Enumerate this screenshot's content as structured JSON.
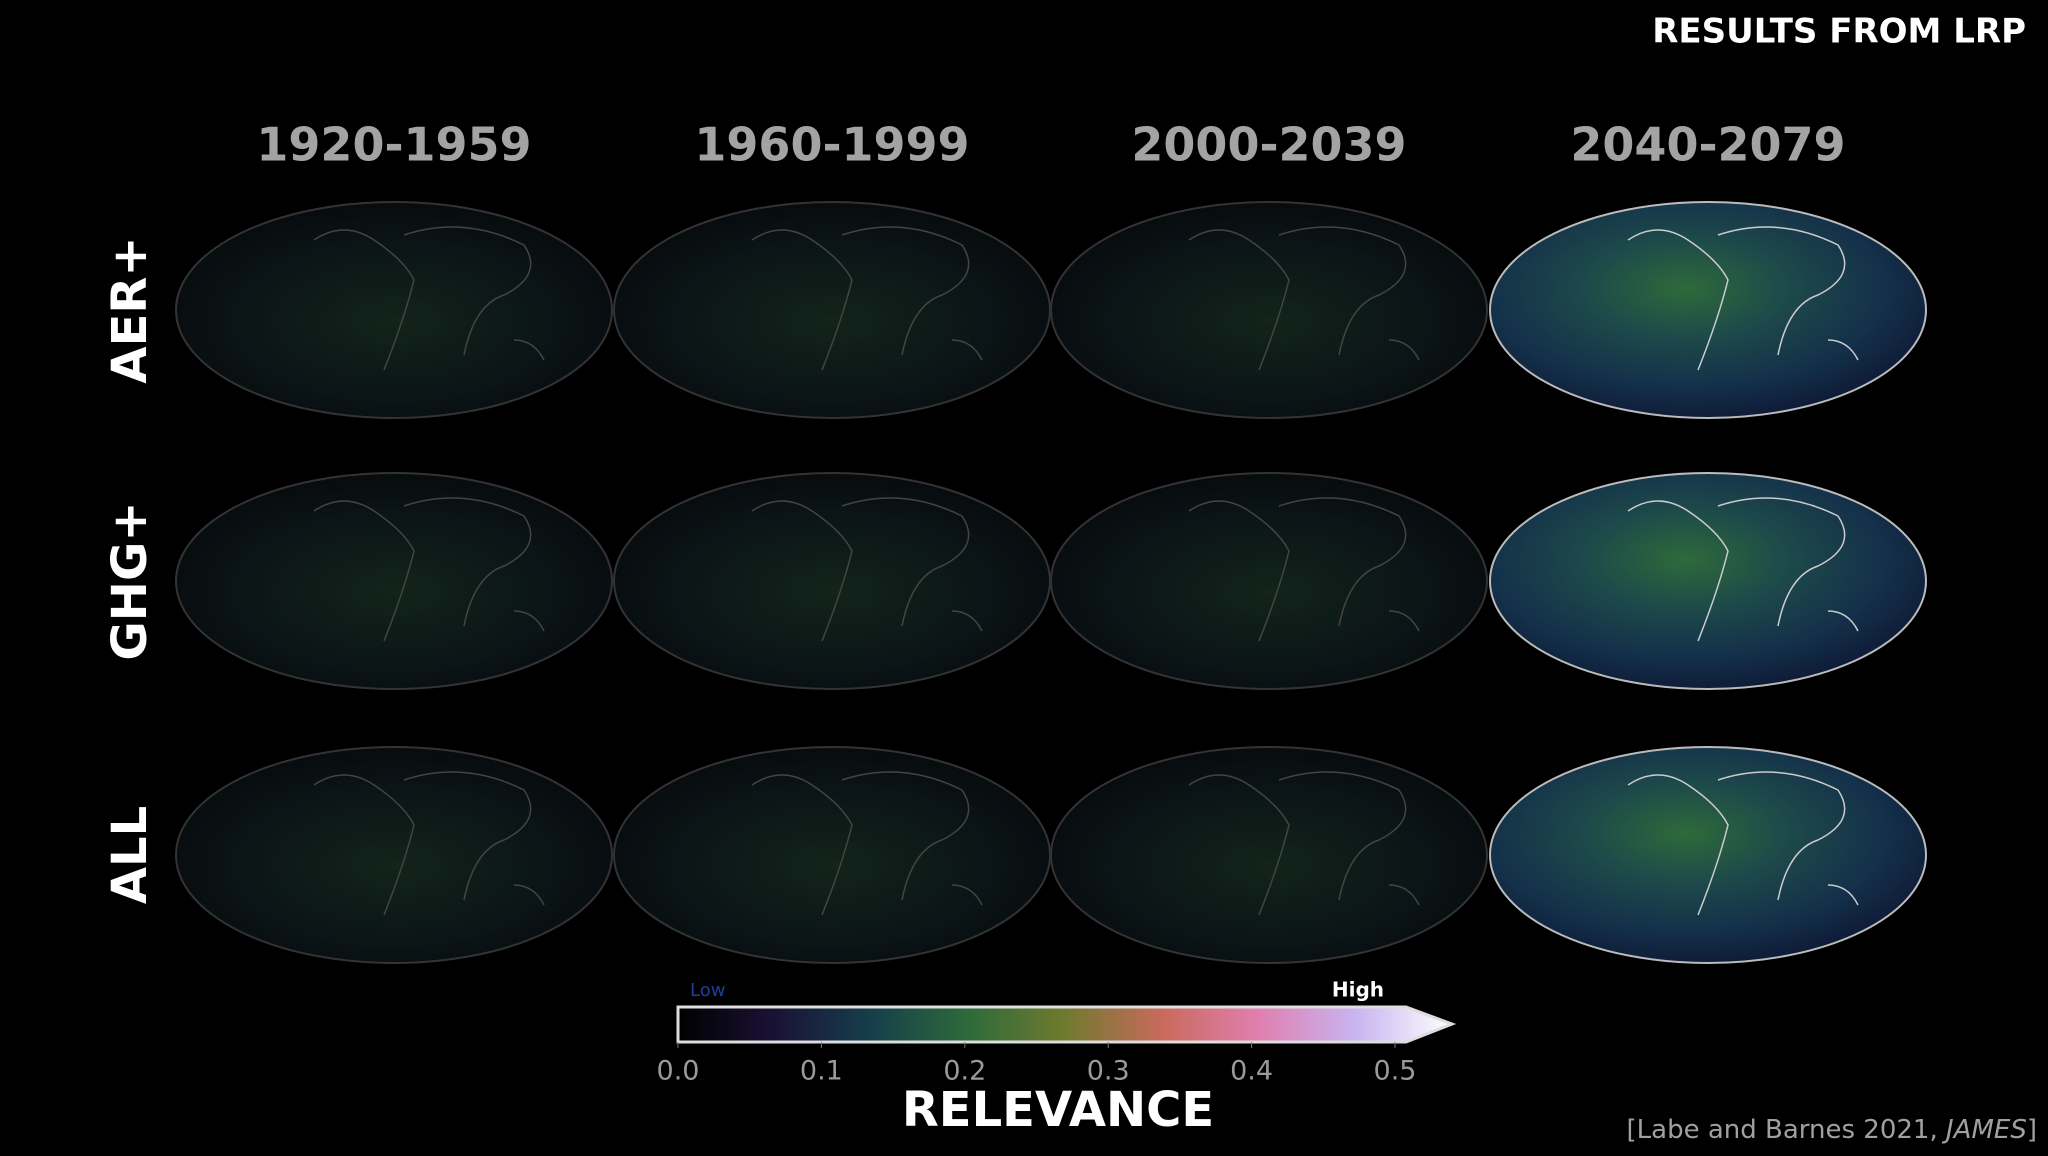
{
  "header": {
    "title": "RESULTS FROM LRP"
  },
  "columns": [
    "1920-1959",
    "1960-1999",
    "2000-2039",
    "2040-2079"
  ],
  "rows": [
    "AER+",
    "GHG+",
    "ALL"
  ],
  "colorbar": {
    "low_label": "Low",
    "high_label": "High",
    "label": "RELEVANCE",
    "lim": [
      0,
      0.5
    ],
    "ticks": [
      {
        "value": 0,
        "label": "0.0"
      },
      0.1,
      0.2,
      0.3,
      0.4,
      0.5
    ],
    "colors": [
      "#000000",
      "#1a1236",
      "#153f4a",
      "#2e6a3a",
      "#6f7a2e",
      "#c96a5c",
      "#e07fb0",
      "#c8b4f0",
      "#ffffff"
    ]
  },
  "citation": {
    "text": "[Labe and Barnes 2021,",
    "journal": "JAMES",
    "close": "]"
  }
}
